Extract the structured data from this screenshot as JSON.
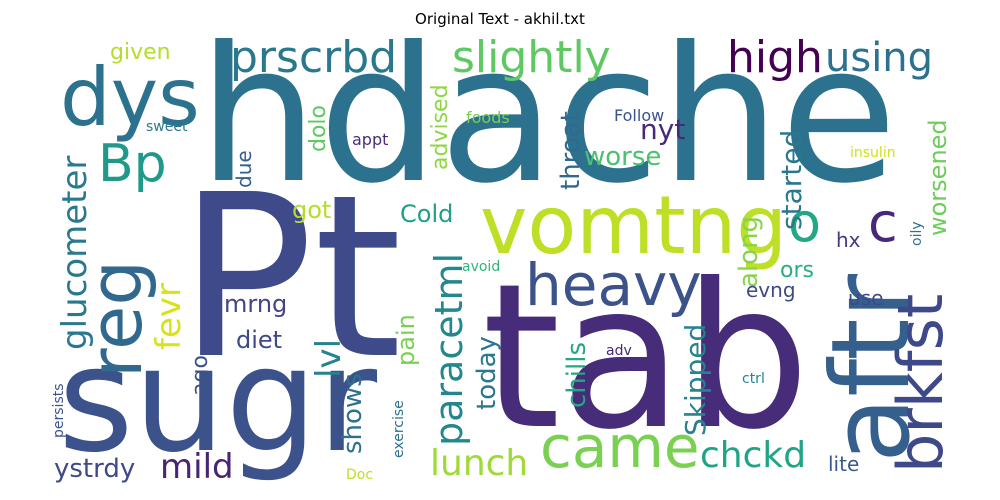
{
  "title": "Original Text - akhil.txt",
  "words": [
    {
      "text": "hdache",
      "color": "#2c728e"
    },
    {
      "text": "Pt",
      "color": "#3e4a89"
    },
    {
      "text": "tab",
      "color": "#472c7a"
    },
    {
      "text": "sugr",
      "color": "#3b528b"
    },
    {
      "text": "aftr",
      "color": "#35608d"
    },
    {
      "text": "vomtng",
      "color": "#bddf26"
    },
    {
      "text": "dys",
      "color": "#2c728e"
    },
    {
      "text": "reg",
      "color": "#31688e"
    },
    {
      "text": "brkfst",
      "color": "#3e4989"
    },
    {
      "text": "heavy",
      "color": "#3b528b"
    },
    {
      "text": "came",
      "color": "#7ad151"
    },
    {
      "text": "Bp",
      "color": "#1f9a8a"
    },
    {
      "text": "prscrbd",
      "color": "#2a788e"
    },
    {
      "text": "slightly",
      "color": "#5ec962"
    },
    {
      "text": "high",
      "color": "#440154"
    },
    {
      "text": "using",
      "color": "#2c728e"
    },
    {
      "text": "o",
      "color": "#22a884"
    },
    {
      "text": "c",
      "color": "#482878"
    },
    {
      "text": "glucometer",
      "color": "#2a788e"
    },
    {
      "text": "fevr",
      "color": "#d8e219"
    },
    {
      "text": "lvl",
      "color": "#26828e"
    },
    {
      "text": "paracetml",
      "color": "#23888e"
    },
    {
      "text": "lunch",
      "color": "#a0da39"
    },
    {
      "text": "chckd",
      "color": "#20a486"
    },
    {
      "text": "mild",
      "color": "#482475"
    },
    {
      "text": "ystrdy",
      "color": "#3e4989"
    },
    {
      "text": "shows",
      "color": "#2c728e"
    },
    {
      "text": "today",
      "color": "#2a788e"
    },
    {
      "text": "throat",
      "color": "#31688e"
    },
    {
      "text": "Skipped",
      "color": "#26828e"
    },
    {
      "text": "chills",
      "color": "#22a884"
    },
    {
      "text": "pain",
      "color": "#7ad151"
    },
    {
      "text": "along",
      "color": "#86d549"
    },
    {
      "text": "started",
      "color": "#2a788e"
    },
    {
      "text": "worsened",
      "color": "#6ccd5a"
    },
    {
      "text": "nyt",
      "color": "#482878"
    },
    {
      "text": "worse",
      "color": "#4ac16d"
    },
    {
      "text": "advised",
      "color": "#8fd744"
    },
    {
      "text": "Cold",
      "color": "#1f9e89"
    },
    {
      "text": "got",
      "color": "#b5de2b"
    },
    {
      "text": "diet",
      "color": "#3e4989"
    },
    {
      "text": "mrng",
      "color": "#414487"
    },
    {
      "text": "ago",
      "color": "#3b528b"
    },
    {
      "text": "due",
      "color": "#355f8d"
    },
    {
      "text": "dolo",
      "color": "#5ec962"
    },
    {
      "text": "given",
      "color": "#b5de2b"
    },
    {
      "text": "evng",
      "color": "#3e4989"
    },
    {
      "text": "ors",
      "color": "#29af7f"
    },
    {
      "text": "use",
      "color": "#3e4989"
    },
    {
      "text": "lite",
      "color": "#38598c"
    },
    {
      "text": "hx",
      "color": "#443983"
    },
    {
      "text": "appt",
      "color": "#472d7b"
    },
    {
      "text": "sweet",
      "color": "#2a788e"
    },
    {
      "text": "foods",
      "color": "#7ad151"
    },
    {
      "text": "Follow",
      "color": "#3b528b"
    },
    {
      "text": "insulin",
      "color": "#d0e11c"
    },
    {
      "text": "avoid",
      "color": "#2fb47c"
    },
    {
      "text": "oily",
      "color": "#2c728e"
    },
    {
      "text": "adv",
      "color": "#482878"
    },
    {
      "text": "ctrl",
      "color": "#26828e"
    },
    {
      "text": "persists",
      "color": "#3b528b"
    },
    {
      "text": "exercise",
      "color": "#2d718e"
    },
    {
      "text": "Doc",
      "color": "#bddf26"
    }
  ]
}
